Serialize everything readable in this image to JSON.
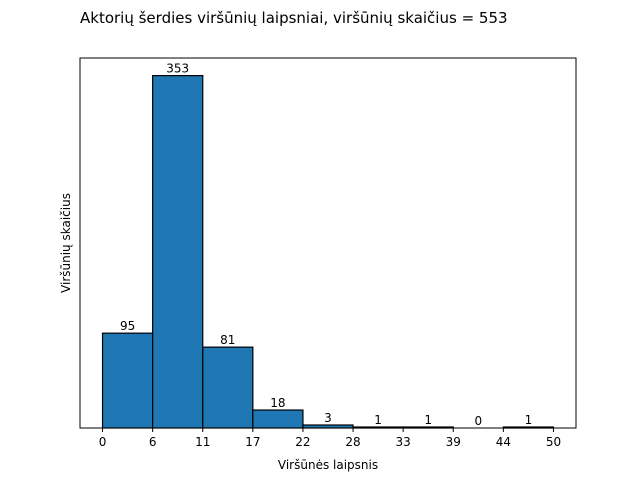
{
  "chart_data": {
    "type": "bar",
    "title": "Aktorių šerdies viršūnių laipsniai, viršūnių skaičius =  553",
    "xlabel": "Viršūnės laipsnis",
    "ylabel": "Viršūnių skaičius",
    "bin_edges": [
      0,
      5.5,
      11,
      16.5,
      22,
      27.5,
      33,
      38.5,
      44,
      49.5
    ],
    "xlim": [
      -2.475,
      51.975
    ],
    "ylim": [
      0,
      370.65
    ],
    "x_ticks": [
      0,
      5.5,
      11,
      16.5,
      22,
      27.5,
      33,
      38.5,
      44,
      49.5
    ],
    "x_tick_labels": [
      "0",
      "6",
      "11",
      "17",
      "22",
      "28",
      "33",
      "39",
      "44",
      "50"
    ],
    "values": [
      95,
      353,
      81,
      18,
      3,
      1,
      1,
      0,
      1
    ],
    "data_labels": [
      "95",
      "353",
      "81",
      "18",
      "3",
      "1",
      "1",
      "0",
      "1"
    ],
    "bar_color": "#1f77b4",
    "y_ticks_visible": false,
    "grid": false
  }
}
